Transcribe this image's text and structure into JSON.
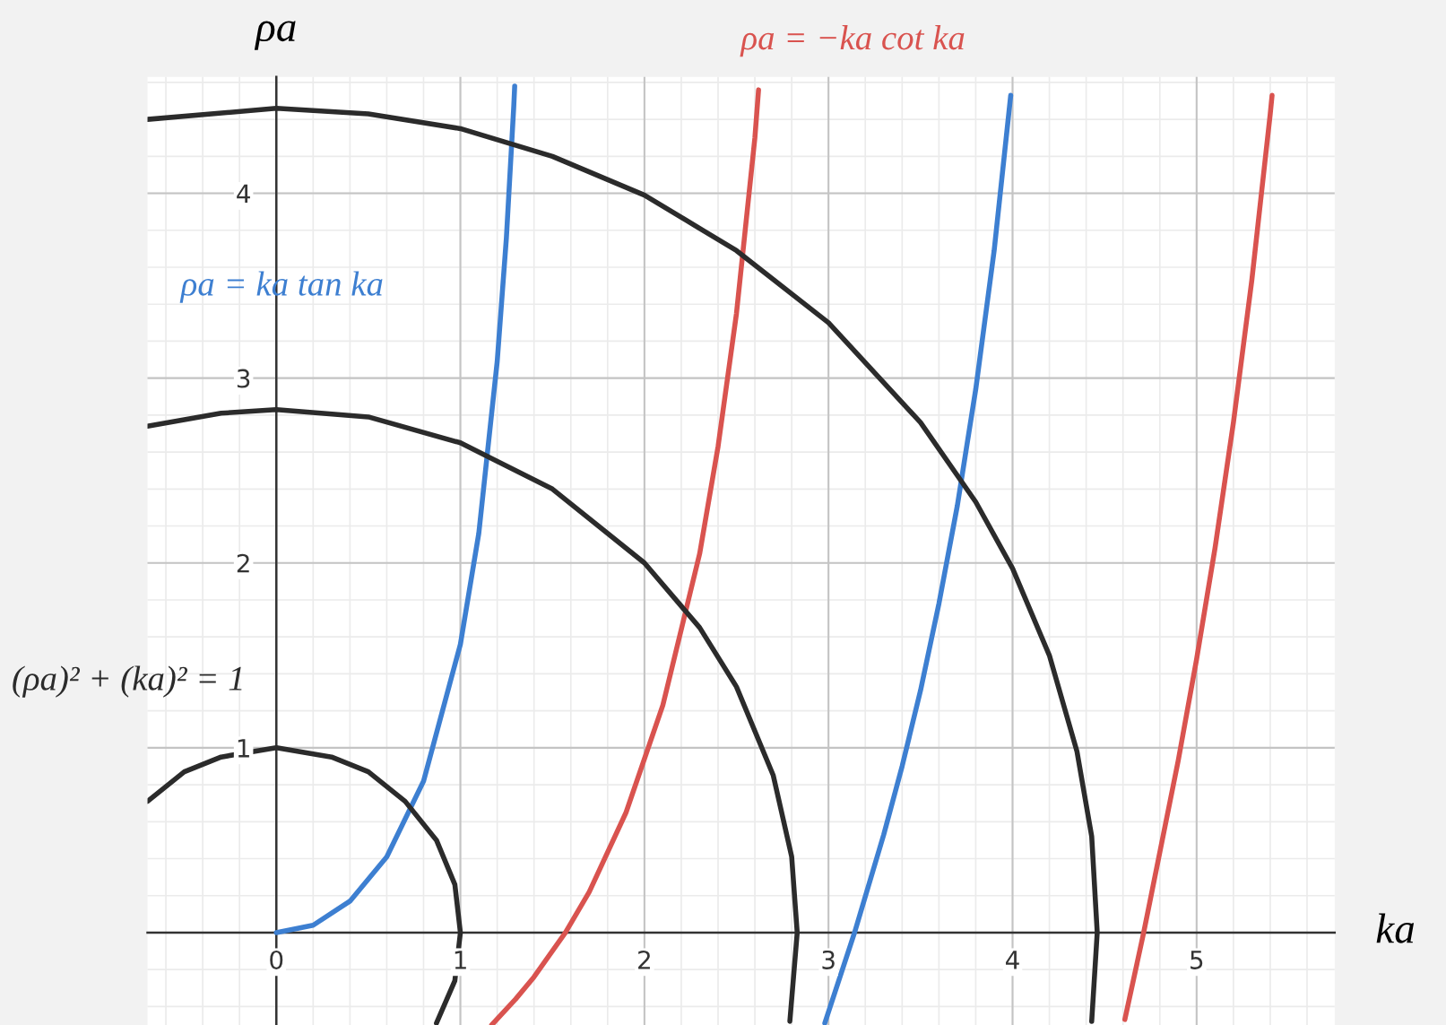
{
  "chart_data": {
    "type": "line",
    "xlabel": "ka",
    "ylabel": "ρa",
    "xlim": [
      -0.7,
      5.75
    ],
    "ylim": [
      -0.5,
      4.63
    ],
    "xticks": [
      0,
      1,
      2,
      3,
      4,
      5
    ],
    "yticks": [
      1,
      2,
      3,
      4
    ],
    "grid": true,
    "legend": false,
    "marker": "none",
    "line_style": "solid",
    "series": [
      {
        "name": "ρa = ka tan ka",
        "color": "#3d7fd1",
        "x": [
          0,
          0.2,
          0.4,
          0.6,
          0.8,
          1.0,
          1.1,
          1.2,
          1.25,
          1.29,
          1.295
        ],
        "values": [
          0,
          0.04,
          0.17,
          0.41,
          0.82,
          1.56,
          2.16,
          3.09,
          3.76,
          4.47,
          4.58
        ]
      },
      {
        "color": "#3d7fd1",
        "x": [
          2.98,
          3.1416,
          3.3,
          3.4,
          3.5,
          3.6,
          3.7,
          3.8,
          3.9,
          3.99
        ],
        "values": [
          -0.49,
          0,
          0.53,
          0.9,
          1.31,
          1.78,
          2.31,
          2.94,
          3.69,
          4.53
        ]
      },
      {
        "name": "ρa = −ka cot ka",
        "color": "#d9534f",
        "x": [
          1.17,
          1.3,
          1.4,
          1.5708,
          1.7,
          1.9,
          2.1,
          2.3,
          2.4,
          2.5,
          2.6,
          2.62
        ],
        "values": [
          -0.5,
          -0.36,
          -0.24,
          0,
          0.22,
          0.65,
          1.23,
          2.05,
          2.63,
          3.35,
          4.3,
          4.56
        ]
      },
      {
        "color": "#d9534f",
        "x": [
          4.61,
          4.7124,
          4.9,
          5.0,
          5.1,
          5.2,
          5.3,
          5.4,
          5.41
        ],
        "values": [
          -0.47,
          0,
          0.93,
          1.48,
          2.08,
          2.76,
          3.53,
          4.43,
          4.53
        ]
      },
      {
        "name": "(ρa)² + (ka)² = 1",
        "color": "#2b2b2b",
        "x": [
          -0.7,
          -0.5,
          -0.3,
          0,
          0.3,
          0.5,
          0.7,
          0.87,
          0.97,
          1,
          0.97,
          0.87
        ],
        "values": [
          0.71,
          0.87,
          0.95,
          1,
          0.95,
          0.87,
          0.71,
          0.5,
          0.26,
          0,
          -0.26,
          -0.49
        ]
      },
      {
        "color": "#2b2b2b",
        "x": [
          -0.7,
          -0.3,
          0,
          0.5,
          1,
          1.5,
          2,
          2.3,
          2.5,
          2.7,
          2.8,
          2.83,
          2.79
        ],
        "values": [
          2.74,
          2.81,
          2.83,
          2.79,
          2.65,
          2.4,
          2.0,
          1.65,
          1.33,
          0.85,
          0.41,
          0,
          -0.48
        ]
      },
      {
        "color": "#2b2b2b",
        "x": [
          -0.7,
          0,
          0.5,
          1,
          1.5,
          2,
          2.5,
          3,
          3.5,
          3.8,
          4,
          4.2,
          4.35,
          4.43,
          4.46,
          4.43
        ],
        "values": [
          4.4,
          4.46,
          4.43,
          4.35,
          4.2,
          3.99,
          3.69,
          3.3,
          2.76,
          2.33,
          1.97,
          1.5,
          0.98,
          0.52,
          0,
          -0.48
        ]
      }
    ]
  }
}
